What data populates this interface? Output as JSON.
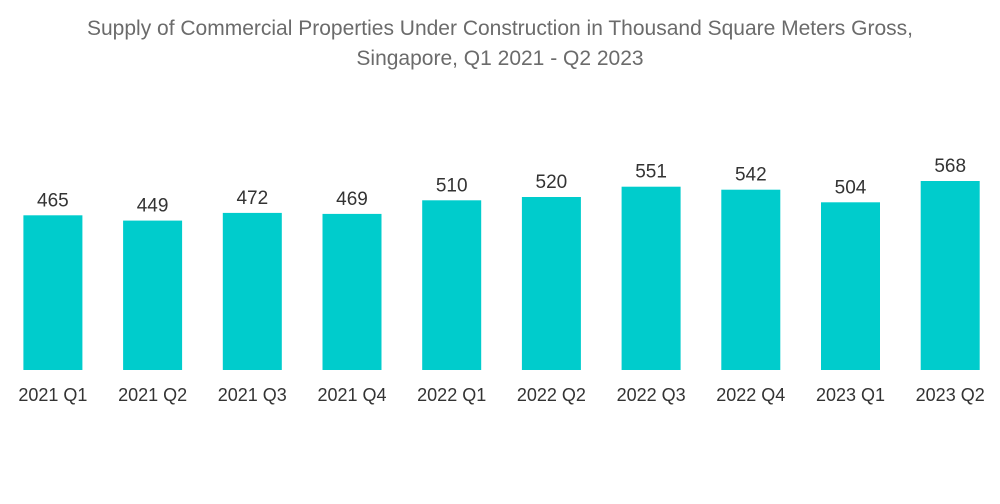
{
  "chart_data": {
    "type": "bar",
    "title_lines": [
      "Supply of Commercial Properties Under Construction in Thousand Square Meters Gross,",
      "Singapore, Q1 2021 - Q2 2023"
    ],
    "categories": [
      "2021 Q1",
      "2021 Q2",
      "2021 Q3",
      "2021 Q4",
      "2022 Q1",
      "2022 Q2",
      "2022 Q3",
      "2022 Q4",
      "2023 Q1",
      "2023 Q2"
    ],
    "values": [
      465,
      449,
      472,
      469,
      510,
      520,
      551,
      542,
      504,
      568
    ],
    "value_labels": [
      "465",
      "449",
      "472",
      "469",
      "510",
      "520",
      "551",
      "542",
      "504",
      "568"
    ],
    "xlabel": "",
    "ylabel": "",
    "ylim": [
      0,
      568
    ],
    "grid": false,
    "legend": "none",
    "bar_color": "#00cccc"
  }
}
